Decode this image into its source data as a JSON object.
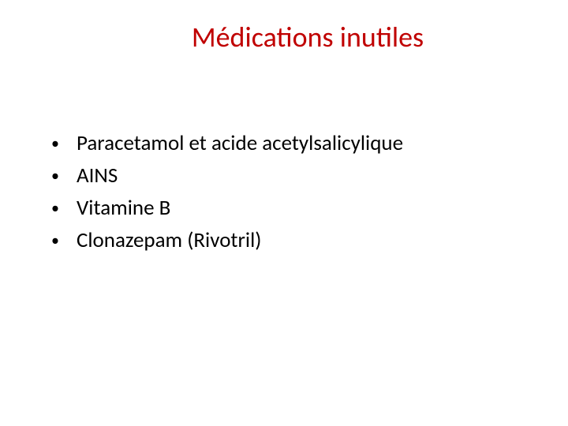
{
  "slide": {
    "title": "Médications inutiles",
    "title_color": "#c00000",
    "title_fontsize": 36,
    "bullets": [
      {
        "text": "Paracetamol  et acide acetylsalicylique"
      },
      {
        "text": "AINS"
      },
      {
        "text": "Vitamine B"
      },
      {
        "text": "Clonazepam (Rivotril)"
      }
    ],
    "bullet_color": "#000000",
    "bullet_fontsize": 27,
    "background_color": "#ffffff"
  }
}
